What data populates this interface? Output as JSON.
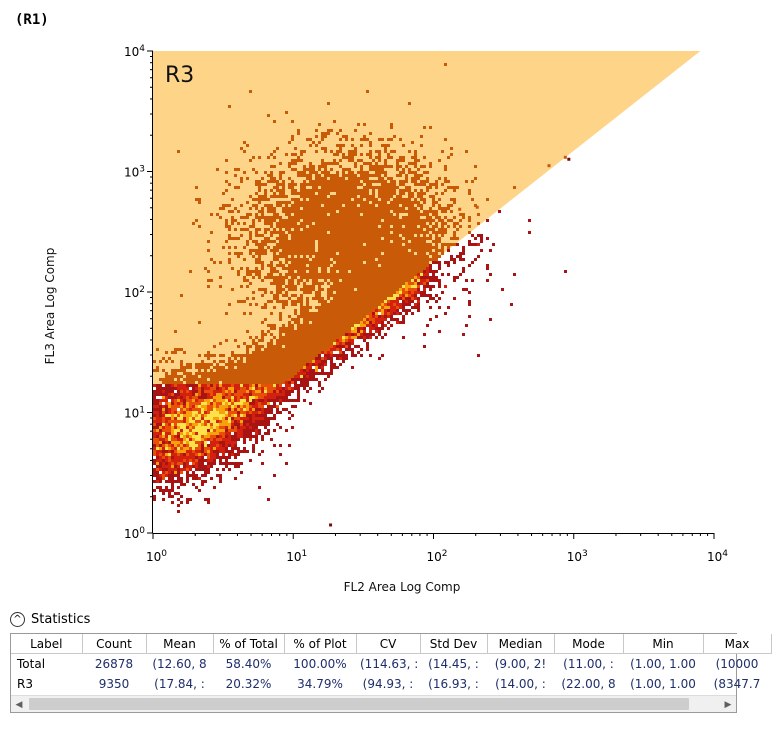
{
  "plot": {
    "title": "(R1)",
    "region_label": "R3"
  },
  "chart_data": {
    "type": "scatter",
    "subtype": "flow-cytometry density plot",
    "xlabel": "FL2 Area Log Comp",
    "ylabel": "FL3 Area Log Comp",
    "xscale": "log",
    "yscale": "log",
    "xlim": [
      1,
      10000
    ],
    "ylim": [
      1,
      10000
    ],
    "x_ticks": [
      {
        "base": "10",
        "exp": "0"
      },
      {
        "base": "10",
        "exp": "1"
      },
      {
        "base": "10",
        "exp": "2"
      },
      {
        "base": "10",
        "exp": "3"
      },
      {
        "base": "10",
        "exp": "4"
      }
    ],
    "y_ticks": [
      {
        "base": "10",
        "exp": "0"
      },
      {
        "base": "10",
        "exp": "1"
      },
      {
        "base": "10",
        "exp": "2"
      },
      {
        "base": "10",
        "exp": "3"
      },
      {
        "base": "10",
        "exp": "4"
      }
    ],
    "density_colormap": [
      "#7a0a0a",
      "#a81313",
      "#d2220f",
      "#e8500a",
      "#f7a10c",
      "#fde24a"
    ],
    "gated_color": "#c95a08",
    "gate": {
      "name": "R3",
      "fill": "#fdd488",
      "vertices": [
        [
          1,
          10000
        ],
        [
          8000,
          10000
        ],
        [
          70,
          130
        ],
        [
          8.5,
          17.5
        ],
        [
          1,
          17
        ]
      ]
    },
    "population": {
      "main_axis": {
        "x_start": 1,
        "y_start": 4,
        "x_end": 80,
        "y_end": 160
      },
      "gated_cloud_center": [
        25,
        300
      ]
    },
    "outliers": [
      [
        18,
        1.2
      ],
      [
        150,
        500
      ],
      [
        200,
        520
      ],
      [
        650,
        1150
      ],
      [
        850,
        1350
      ],
      [
        900,
        1300
      ]
    ]
  },
  "statistics": {
    "title": "Statistics",
    "columns": [
      "Label",
      "Count",
      "Mean",
      "% of Total",
      "% of Plot",
      "CV",
      "Std Dev",
      "Median",
      "Mode",
      "Min",
      "Max"
    ],
    "rows": [
      {
        "label": "Total",
        "count": "26878",
        "mean": "(12.60, 8",
        "pct_total": "58.40%",
        "pct_plot": "100.00%",
        "cv": "(114.63, :",
        "std_dev": "(14.45, :",
        "median": "(9.00, 2!",
        "mode": "(11.00, :",
        "min": "(1.00, 1.00",
        "max": "(10000"
      },
      {
        "label": "R3",
        "count": "9350",
        "mean": "(17.84, :",
        "pct_total": "20.32%",
        "pct_plot": "34.79%",
        "cv": "(94.93, :",
        "std_dev": "(16.93, :",
        "median": "(14.00, :",
        "mode": "(22.00, 8",
        "min": "(1.00, 1.00",
        "max": "(8347.7"
      }
    ]
  }
}
